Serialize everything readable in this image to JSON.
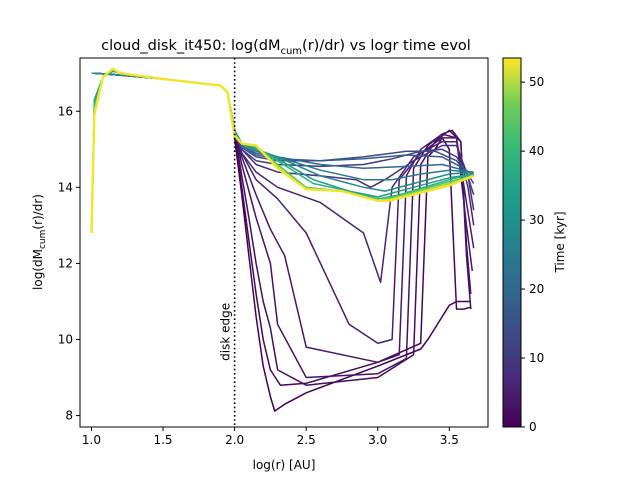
{
  "chart_data": {
    "type": "line",
    "title": {
      "main": "cloud_disk_it450: log(dM",
      "sub": "cum",
      "tail": "(r)/dr) vs logr time evol"
    },
    "xlabel": "log(r) [AU]",
    "ylabel": {
      "pre": "log(dM",
      "sub": "cum",
      "post": "(r)/dr)"
    },
    "xlim": [
      0.92,
      3.77
    ],
    "ylim": [
      7.7,
      17.4
    ],
    "xticks": [
      1.0,
      1.5,
      2.0,
      2.5,
      3.0,
      3.5
    ],
    "xtick_labels": [
      "1.0",
      "1.5",
      "2.0",
      "2.5",
      "3.0",
      "3.5"
    ],
    "yticks": [
      8,
      10,
      12,
      14,
      16
    ],
    "ytick_labels": [
      "8",
      "10",
      "12",
      "14",
      "16"
    ],
    "grid": false,
    "colormap": "viridis",
    "colorbar": {
      "label": "Time [kyr]",
      "range": [
        0,
        53.5
      ],
      "ticks": [
        0,
        10,
        20,
        30,
        40,
        50
      ],
      "tick_labels": [
        "0",
        "10",
        "20",
        "30",
        "40",
        "50"
      ]
    },
    "annotation": {
      "text": "disk edge",
      "x": 2.0
    },
    "vline": {
      "x": 2.0,
      "style": "dotted"
    },
    "n_snapshots": 54,
    "series": [
      {
        "time": 0,
        "x": [
          1.0,
          1.02,
          1.1,
          1.2,
          1.5,
          1.8,
          1.9,
          1.95,
          2.0,
          2.05,
          2.1,
          2.15,
          2.2,
          2.25,
          2.28,
          2.35,
          2.5,
          3.0,
          3.3,
          3.35,
          3.4,
          3.5,
          3.55,
          3.6,
          3.65
        ],
        "y": [
          17.0,
          17.0,
          16.98,
          16.95,
          16.85,
          16.72,
          16.68,
          16.5,
          15.3,
          13.8,
          12.2,
          10.6,
          9.3,
          8.5,
          8.12,
          8.3,
          8.6,
          9.3,
          9.75,
          10.0,
          10.3,
          10.9,
          11.0,
          11.0,
          11.0
        ]
      },
      {
        "time": 1,
        "x": [
          1.0,
          1.02,
          1.1,
          1.2,
          1.5,
          1.8,
          1.9,
          1.95,
          2.0,
          2.05,
          2.1,
          2.15,
          2.2,
          2.25,
          2.32,
          2.5,
          3.0,
          3.3,
          3.35,
          3.4,
          3.45,
          3.5,
          3.55,
          3.6,
          3.65
        ],
        "y": [
          17.0,
          17.0,
          16.98,
          16.95,
          16.85,
          16.72,
          16.68,
          16.5,
          15.4,
          14.0,
          12.6,
          11.2,
          10.0,
          9.2,
          8.8,
          8.85,
          9.4,
          9.9,
          14.8,
          15.0,
          15.3,
          15.0,
          10.8,
          10.8,
          10.85
        ]
      },
      {
        "time": 2,
        "x": [
          1.0,
          1.02,
          1.1,
          1.2,
          1.5,
          1.8,
          1.9,
          1.95,
          2.0,
          2.05,
          2.1,
          2.15,
          2.2,
          2.25,
          2.3,
          2.5,
          3.0,
          3.25,
          3.3,
          3.4,
          3.5,
          3.58,
          3.62,
          3.65
        ],
        "y": [
          17.0,
          17.0,
          16.98,
          16.95,
          16.85,
          16.72,
          16.68,
          16.5,
          15.45,
          14.3,
          13.2,
          12.0,
          11.0,
          10.3,
          9.2,
          8.8,
          9.0,
          9.6,
          14.6,
          15.2,
          15.5,
          15.2,
          12.2,
          10.8
        ]
      },
      {
        "time": 3,
        "x": [
          1.0,
          1.02,
          1.1,
          1.2,
          1.5,
          1.8,
          1.9,
          1.95,
          2.0,
          2.05,
          2.15,
          2.25,
          2.3,
          2.5,
          3.0,
          3.2,
          3.25,
          3.35,
          3.45,
          3.52,
          3.58,
          3.62,
          3.65
        ],
        "y": [
          17.0,
          17.0,
          16.98,
          16.95,
          16.85,
          16.72,
          16.68,
          16.5,
          15.5,
          14.6,
          13.2,
          12.0,
          10.4,
          9.0,
          9.1,
          9.5,
          14.5,
          15.1,
          15.4,
          15.5,
          15.2,
          12.5,
          11.2
        ]
      },
      {
        "time": 4,
        "x": [
          1.0,
          1.02,
          1.1,
          1.2,
          1.5,
          1.8,
          1.9,
          1.95,
          2.0,
          2.05,
          2.15,
          2.25,
          2.35,
          2.5,
          3.0,
          3.15,
          3.2,
          3.3,
          3.45,
          3.55,
          3.62,
          3.66
        ],
        "y": [
          17.0,
          17.0,
          16.98,
          16.95,
          16.85,
          16.72,
          16.68,
          16.5,
          15.5,
          14.8,
          13.8,
          12.9,
          12.2,
          9.8,
          9.4,
          9.6,
          14.3,
          15.0,
          15.4,
          15.3,
          13.0,
          11.8
        ]
      },
      {
        "time": 5,
        "x": [
          1.0,
          1.02,
          1.1,
          1.2,
          1.5,
          1.8,
          1.9,
          1.95,
          2.0,
          2.05,
          2.15,
          2.3,
          2.5,
          2.8,
          3.0,
          3.1,
          3.15,
          3.3,
          3.45,
          3.55,
          3.62,
          3.67
        ],
        "y": [
          17.0,
          17.0,
          16.98,
          16.95,
          16.85,
          16.72,
          16.68,
          16.5,
          15.5,
          14.9,
          14.2,
          13.7,
          12.8,
          10.4,
          9.9,
          10.0,
          14.2,
          14.9,
          15.3,
          15.3,
          13.6,
          12.4
        ]
      },
      {
        "time": 6,
        "x": [
          1.0,
          1.02,
          1.1,
          1.2,
          1.5,
          1.8,
          1.9,
          1.95,
          2.0,
          2.05,
          2.15,
          2.3,
          2.6,
          2.9,
          3.02,
          3.1,
          3.25,
          3.45,
          3.55,
          3.63,
          3.67
        ],
        "y": [
          17.0,
          17.0,
          16.98,
          16.95,
          16.85,
          16.72,
          16.68,
          16.5,
          15.5,
          14.9,
          14.4,
          14.0,
          13.6,
          12.8,
          11.5,
          14.0,
          14.8,
          15.2,
          15.2,
          14.0,
          13.0
        ]
      },
      {
        "time": 8,
        "x": [
          1.0,
          1.02,
          1.1,
          1.2,
          1.5,
          1.8,
          1.9,
          1.95,
          2.0,
          2.05,
          2.15,
          2.3,
          2.6,
          2.85,
          2.95,
          3.05,
          3.25,
          3.45,
          3.55,
          3.63,
          3.67
        ],
        "y": [
          17.0,
          17.0,
          16.98,
          16.95,
          16.85,
          16.72,
          16.68,
          16.5,
          15.5,
          15.0,
          14.6,
          14.4,
          14.3,
          14.2,
          14.0,
          14.2,
          14.7,
          15.1,
          15.1,
          14.3,
          13.4
        ]
      },
      {
        "time": 11,
        "x": [
          1.0,
          1.02,
          1.1,
          1.2,
          1.5,
          1.8,
          1.9,
          1.95,
          2.0,
          2.05,
          2.15,
          2.3,
          2.6,
          2.9,
          3.1,
          3.3,
          3.45,
          3.55,
          3.62,
          3.67
        ],
        "y": [
          17.0,
          17.0,
          16.98,
          16.95,
          16.85,
          16.72,
          16.68,
          16.5,
          15.5,
          15.0,
          14.7,
          14.6,
          14.55,
          14.6,
          14.75,
          14.95,
          15.0,
          14.8,
          14.4,
          13.8
        ]
      },
      {
        "time": 14,
        "x": [
          1.0,
          1.02,
          1.1,
          1.2,
          1.5,
          1.8,
          1.9,
          1.95,
          2.0,
          2.05,
          2.15,
          2.3,
          2.6,
          2.9,
          3.2,
          3.4,
          3.55,
          3.62,
          3.67
        ],
        "y": [
          17.0,
          17.0,
          16.98,
          16.95,
          16.85,
          16.72,
          16.68,
          16.5,
          15.5,
          15.05,
          14.8,
          14.7,
          14.7,
          14.8,
          14.95,
          14.95,
          14.7,
          14.4,
          14.1
        ]
      },
      {
        "time": 17,
        "x": [
          1.0,
          1.02,
          1.1,
          1.2,
          1.5,
          1.8,
          1.9,
          1.95,
          2.0,
          2.05,
          2.15,
          2.3,
          2.6,
          2.9,
          3.2,
          3.45,
          3.6,
          3.67
        ],
        "y": [
          17.0,
          17.0,
          16.98,
          16.95,
          16.85,
          16.72,
          16.68,
          16.5,
          15.5,
          15.1,
          14.85,
          14.75,
          14.7,
          14.75,
          14.85,
          14.8,
          14.5,
          14.3
        ]
      },
      {
        "time": 20,
        "x": [
          1.0,
          1.02,
          1.1,
          1.2,
          1.5,
          1.8,
          1.9,
          1.95,
          2.0,
          2.05,
          2.15,
          2.3,
          2.6,
          2.9,
          3.2,
          3.45,
          3.6,
          3.67
        ],
        "y": [
          17.0,
          17.0,
          16.98,
          16.95,
          16.85,
          16.72,
          16.68,
          16.5,
          15.5,
          15.1,
          14.9,
          14.8,
          14.6,
          14.5,
          14.55,
          14.6,
          14.45,
          14.35
        ]
      },
      {
        "time": 24,
        "x": [
          1.0,
          1.02,
          1.1,
          1.2,
          1.5,
          1.8,
          1.9,
          1.95,
          2.0,
          2.05,
          2.15,
          2.3,
          2.6,
          2.9,
          3.1,
          3.3,
          3.5,
          3.67
        ],
        "y": [
          17.0,
          17.0,
          16.98,
          16.95,
          16.85,
          16.72,
          16.68,
          16.5,
          15.5,
          15.15,
          14.95,
          14.8,
          14.45,
          14.2,
          14.2,
          14.35,
          14.45,
          14.4
        ]
      },
      {
        "time": 28,
        "x": [
          1.0,
          1.02,
          1.1,
          1.2,
          1.5,
          1.8,
          1.9,
          1.95,
          2.0,
          2.05,
          2.15,
          2.3,
          2.6,
          2.9,
          3.05,
          3.25,
          3.5,
          3.67
        ],
        "y": [
          17.0,
          17.0,
          16.98,
          16.95,
          16.85,
          16.72,
          16.68,
          16.5,
          15.5,
          15.15,
          15.0,
          14.8,
          14.3,
          14.0,
          13.9,
          14.1,
          14.35,
          14.4
        ]
      },
      {
        "time": 33,
        "x": [
          1.0,
          1.02,
          1.08,
          1.15,
          1.2,
          1.5,
          1.8,
          1.9,
          1.95,
          2.0,
          2.05,
          2.15,
          2.3,
          2.55,
          2.8,
          3.0,
          3.2,
          3.5,
          3.67
        ],
        "y": [
          12.9,
          16.3,
          16.9,
          17.05,
          17.0,
          16.85,
          16.72,
          16.68,
          16.5,
          15.5,
          15.15,
          15.0,
          14.75,
          14.2,
          13.9,
          13.75,
          13.95,
          14.25,
          14.35
        ]
      },
      {
        "time": 38,
        "x": [
          1.0,
          1.02,
          1.08,
          1.15,
          1.2,
          1.5,
          1.8,
          1.9,
          1.95,
          2.0,
          2.05,
          2.15,
          2.3,
          2.55,
          2.8,
          3.0,
          3.15,
          3.5,
          3.67
        ],
        "y": [
          12.85,
          16.2,
          16.9,
          17.08,
          17.0,
          16.85,
          16.72,
          16.68,
          16.5,
          15.45,
          15.15,
          15.05,
          14.7,
          14.1,
          13.9,
          13.7,
          13.8,
          14.2,
          14.35
        ]
      },
      {
        "time": 44,
        "x": [
          1.0,
          1.02,
          1.08,
          1.15,
          1.2,
          1.5,
          1.8,
          1.9,
          1.95,
          2.0,
          2.05,
          2.15,
          2.3,
          2.5,
          2.75,
          3.0,
          3.12,
          3.5,
          3.67
        ],
        "y": [
          12.8,
          16.1,
          16.9,
          17.1,
          17.0,
          16.85,
          16.72,
          16.68,
          16.5,
          15.4,
          15.15,
          15.1,
          14.6,
          14.0,
          13.9,
          13.65,
          13.75,
          14.15,
          14.3
        ]
      },
      {
        "time": 49,
        "x": [
          1.0,
          1.02,
          1.08,
          1.15,
          1.2,
          1.5,
          1.8,
          1.9,
          1.95,
          2.0,
          2.05,
          2.15,
          2.3,
          2.5,
          2.75,
          3.0,
          3.1,
          3.5,
          3.67
        ],
        "y": [
          12.8,
          16.0,
          16.9,
          17.12,
          17.0,
          16.85,
          16.72,
          16.68,
          16.5,
          15.35,
          15.15,
          15.1,
          14.55,
          13.95,
          13.9,
          13.65,
          13.7,
          14.1,
          14.3
        ]
      },
      {
        "time": 53,
        "x": [
          1.0,
          1.02,
          1.08,
          1.15,
          1.2,
          1.5,
          1.8,
          1.9,
          1.95,
          2.0,
          2.05,
          2.15,
          2.3,
          2.5,
          2.75,
          3.0,
          3.08,
          3.5,
          3.67
        ],
        "y": [
          12.8,
          15.9,
          16.9,
          17.12,
          17.0,
          16.85,
          16.72,
          16.68,
          16.5,
          15.35,
          15.15,
          15.1,
          14.5,
          13.95,
          13.9,
          13.65,
          13.65,
          14.05,
          14.3
        ]
      }
    ]
  }
}
